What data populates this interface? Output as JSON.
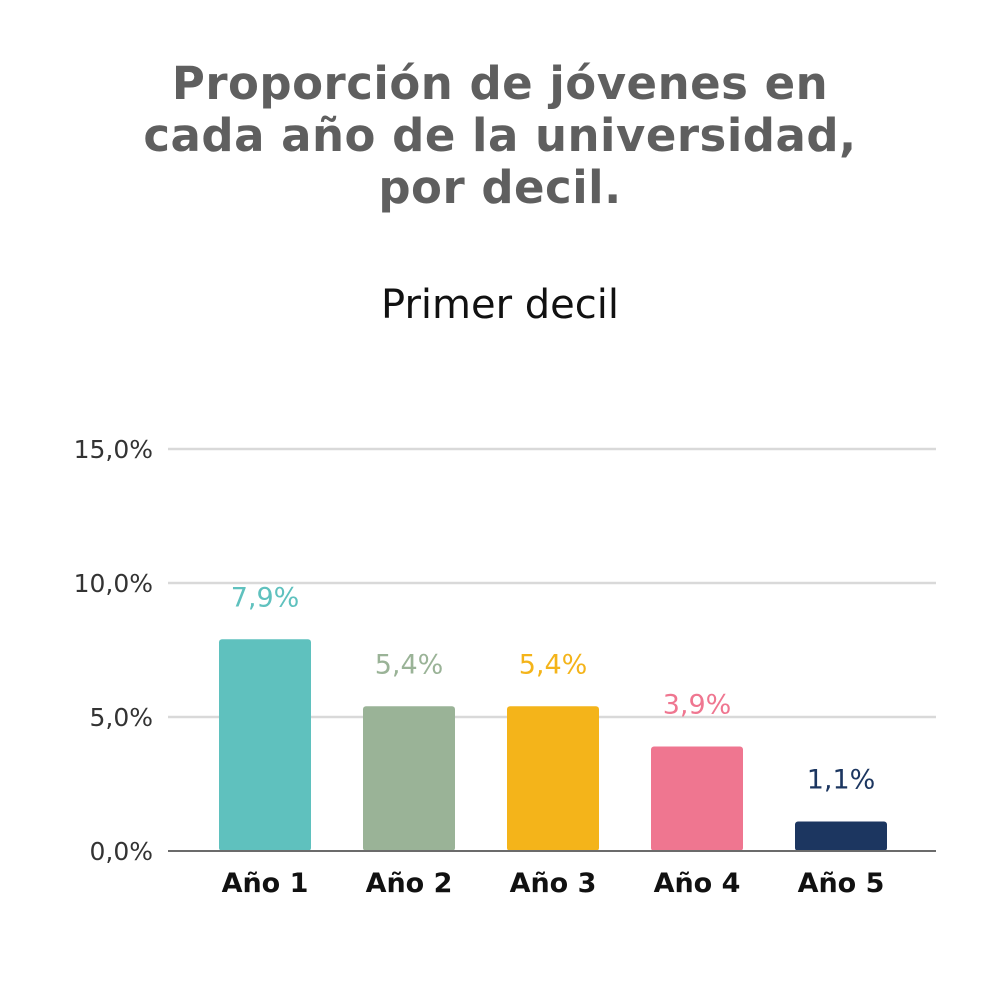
{
  "title_lines": [
    "Proporción de jóvenes en",
    "cada año de la universidad,",
    "por decil."
  ],
  "subtitle": "Primer decil",
  "chart_data": {
    "type": "bar",
    "categories": [
      "Año 1",
      "Año 2",
      "Año 3",
      "Año 4",
      "Año 5"
    ],
    "values": [
      7.9,
      5.4,
      5.4,
      3.9,
      1.1
    ],
    "value_labels": [
      "7,9%",
      "5,4%",
      "5,4%",
      "3,9%",
      "1,1%"
    ],
    "colors": [
      "#5fc1be",
      "#9ab397",
      "#f4b41a",
      "#ef7690",
      "#1c3660"
    ],
    "ylim": [
      0,
      15
    ],
    "yticks": [
      0,
      5,
      10,
      15
    ],
    "ytick_labels": [
      "0,0%",
      "5,0%",
      "10,0%",
      "15,0%"
    ],
    "grid": true,
    "legend": "none"
  }
}
